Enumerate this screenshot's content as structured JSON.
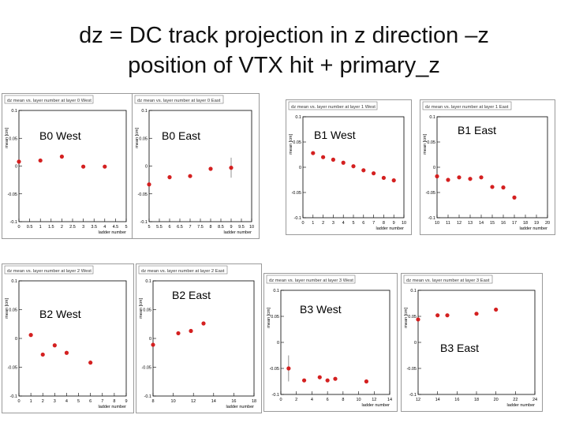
{
  "slide": {
    "title_line1": "dz = DC track projection in z direction –z",
    "title_line2": "position of VTX hit + primary_z"
  },
  "colors": {
    "marker": "#d42020",
    "frame": "#000000",
    "border": "#9a9a9a",
    "panel_bg": "#ffffff"
  },
  "chart_data": [
    {
      "type": "scatter",
      "id": "l0w",
      "label": "B0 West",
      "title": "dz mean vs. layer number at layer 0 West",
      "xlabel": "ladder number",
      "ylabel": "mean [cm]",
      "xlim": [
        0,
        5
      ],
      "ylim": [
        -0.1,
        0.1
      ],
      "xticks": [
        "0",
        "0.5",
        "1",
        "1.5",
        "2",
        "2.5",
        "3",
        "3.5",
        "4",
        "4.5",
        "5"
      ],
      "yticks": [
        "0.1",
        "0.05",
        "0",
        "-0.05",
        "-0.1"
      ],
      "points": [
        {
          "x": 0,
          "y": 0.008
        },
        {
          "x": 1,
          "y": 0.01
        },
        {
          "x": 2,
          "y": 0.017
        },
        {
          "x": 3,
          "y": -0.001
        },
        {
          "x": 4,
          "y": -0.001
        }
      ]
    },
    {
      "type": "scatter",
      "id": "l0e",
      "label": "B0 East",
      "title": "dz mean vs. layer number at layer 0 East",
      "xlabel": "ladder number",
      "ylabel": "mean [cm]",
      "xlim": [
        5,
        10
      ],
      "ylim": [
        -0.1,
        0.1
      ],
      "xticks": [
        "5",
        "5.5",
        "6",
        "6.5",
        "7",
        "7.5",
        "8",
        "8.5",
        "9",
        "9.5",
        "10"
      ],
      "yticks": [
        "0.1",
        "0.05",
        "0",
        "-0.05",
        "-0.1"
      ],
      "points": [
        {
          "x": 5,
          "y": -0.033
        },
        {
          "x": 6,
          "y": -0.02
        },
        {
          "x": 7,
          "y": -0.018
        },
        {
          "x": 8,
          "y": -0.005
        },
        {
          "x": 9,
          "y": -0.003,
          "err": 0.018
        }
      ]
    },
    {
      "type": "scatter",
      "id": "l1w",
      "label": "B1 West",
      "title": "dz mean vs. layer number at layer 1 West",
      "xlabel": "ladder number",
      "ylabel": "mean [cm]",
      "xlim": [
        0,
        10
      ],
      "ylim": [
        -0.1,
        0.1
      ],
      "xticks": [
        "0",
        "1",
        "2",
        "3",
        "4",
        "5",
        "6",
        "7",
        "8",
        "9",
        "10"
      ],
      "yticks": [
        "0.1",
        "0.05",
        "0",
        "-0.05",
        "-0.1"
      ],
      "points": [
        {
          "x": 1,
          "y": 0.028
        },
        {
          "x": 2,
          "y": 0.02
        },
        {
          "x": 3,
          "y": 0.015
        },
        {
          "x": 4,
          "y": 0.009
        },
        {
          "x": 5,
          "y": 0.002
        },
        {
          "x": 6,
          "y": -0.006
        },
        {
          "x": 7,
          "y": -0.012
        },
        {
          "x": 8,
          "y": -0.021
        },
        {
          "x": 9,
          "y": -0.026
        }
      ]
    },
    {
      "type": "scatter",
      "id": "l1e",
      "label": "B1 East",
      "title": "dz mean vs. layer number at layer 1 East",
      "xlabel": "ladder number",
      "ylabel": "mean [cm]",
      "xlim": [
        10,
        20
      ],
      "ylim": [
        -0.1,
        0.1
      ],
      "xticks": [
        "10",
        "11",
        "12",
        "13",
        "14",
        "15",
        "16",
        "17",
        "18",
        "19",
        "20"
      ],
      "yticks": [
        "0.1",
        "0.05",
        "0",
        "-0.05",
        "-0.1"
      ],
      "points": [
        {
          "x": 10,
          "y": -0.018
        },
        {
          "x": 11,
          "y": -0.025
        },
        {
          "x": 12,
          "y": -0.02
        },
        {
          "x": 13,
          "y": -0.023
        },
        {
          "x": 14,
          "y": -0.02
        },
        {
          "x": 15,
          "y": -0.039
        },
        {
          "x": 16,
          "y": -0.04
        },
        {
          "x": 17,
          "y": -0.06
        }
      ]
    },
    {
      "type": "scatter",
      "id": "l2w",
      "label": "B2 West",
      "title": "dz mean vs. layer number at layer 2 West",
      "xlabel": "ladder number",
      "ylabel": "mean [cm]",
      "xlim": [
        0,
        9
      ],
      "ylim": [
        -0.1,
        0.1
      ],
      "xticks": [
        "0",
        "1",
        "2",
        "3",
        "4",
        "5",
        "6",
        "7",
        "8",
        "9"
      ],
      "yticks": [
        "0.1",
        "0.05",
        "0",
        "-0.05",
        "-0.1"
      ],
      "points": [
        {
          "x": 1,
          "y": 0.006
        },
        {
          "x": 2,
          "y": -0.028
        },
        {
          "x": 3,
          "y": -0.012
        },
        {
          "x": 4,
          "y": -0.025
        },
        {
          "x": 6,
          "y": -0.042
        }
      ]
    },
    {
      "type": "scatter",
      "id": "l2e",
      "label": "B2 East",
      "title": "dz mean vs. layer number at layer 2 East",
      "xlabel": "ladder number",
      "ylabel": "mean [cm]",
      "xlim": [
        8,
        16
      ],
      "ylim": [
        -0.1,
        0.1
      ],
      "xticks": [
        "8",
        "10",
        "12",
        "14",
        "16",
        "18"
      ],
      "yticks": [
        "0.1",
        "0.05",
        "0",
        "-0.05",
        "-0.1"
      ],
      "points": [
        {
          "x": 8,
          "y": -0.011
        },
        {
          "x": 10,
          "y": 0.009
        },
        {
          "x": 11,
          "y": 0.013
        },
        {
          "x": 12,
          "y": 0.026
        }
      ]
    },
    {
      "type": "scatter",
      "id": "l3w",
      "label": "B3 West",
      "title": "dz mean vs. layer number at layer 3 West",
      "xlabel": "ladder number",
      "ylabel": "mean [cm]",
      "xlim": [
        0,
        14
      ],
      "ylim": [
        -0.1,
        0.1
      ],
      "xticks": [
        "0",
        "2",
        "4",
        "6",
        "8",
        "10",
        "12",
        "14"
      ],
      "yticks": [
        "0.1",
        "0.05",
        "0",
        "-0.05",
        "-0.1"
      ],
      "points": [
        {
          "x": 1,
          "y": -0.05,
          "err": 0.025
        },
        {
          "x": 3,
          "y": -0.073
        },
        {
          "x": 5,
          "y": -0.067
        },
        {
          "x": 6,
          "y": -0.073
        },
        {
          "x": 7,
          "y": -0.07
        },
        {
          "x": 11,
          "y": -0.075
        }
      ]
    },
    {
      "type": "scatter",
      "id": "l3e",
      "label": "B3 East",
      "title": "dz mean vs. layer number at layer 3 East",
      "xlabel": "ladder number",
      "ylabel": "mean [cm]",
      "xlim": [
        12,
        24
      ],
      "ylim": [
        -0.1,
        0.1
      ],
      "xticks": [
        "12",
        "14",
        "16",
        "18",
        "20",
        "22",
        "24"
      ],
      "yticks": [
        "0.1",
        "0.05",
        "0",
        "-0.05",
        "-0.1"
      ],
      "points": [
        {
          "x": 12,
          "y": 0.044
        },
        {
          "x": 14,
          "y": 0.052
        },
        {
          "x": 15,
          "y": 0.052
        },
        {
          "x": 18,
          "y": 0.055
        },
        {
          "x": 20,
          "y": 0.063
        }
      ]
    }
  ]
}
